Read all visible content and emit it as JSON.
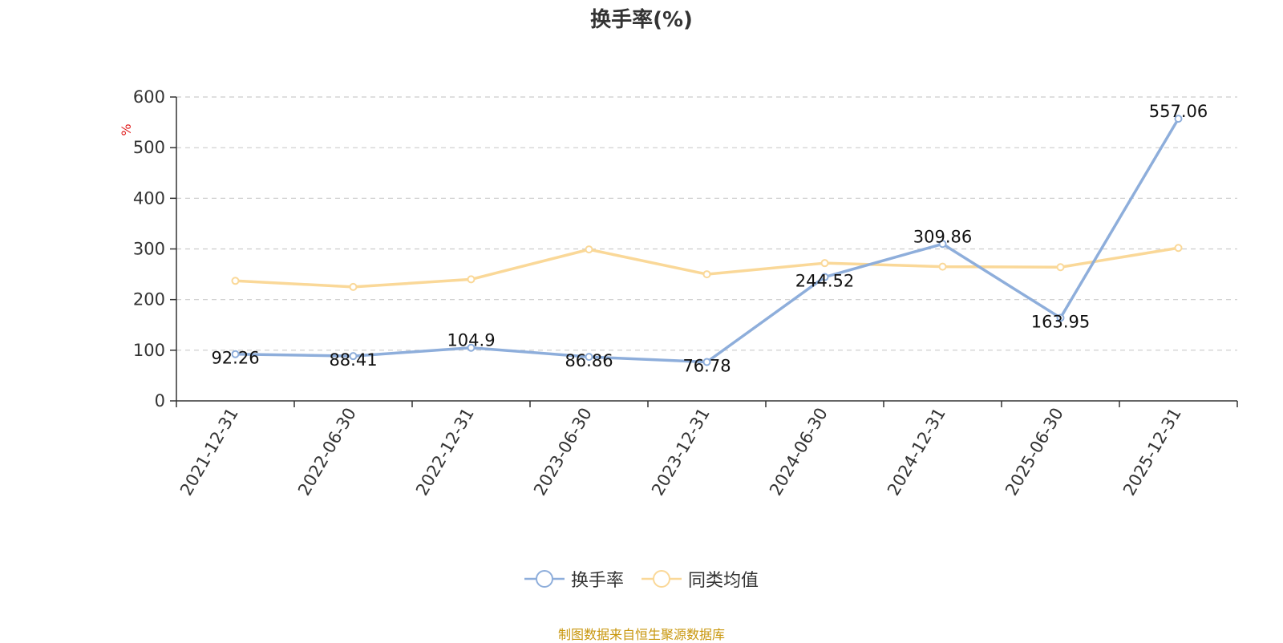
{
  "chart_data": {
    "type": "line",
    "title": "换手率(%)",
    "ylabel": "%",
    "xlabel": "",
    "ylim": [
      0,
      600
    ],
    "yticks": [
      0,
      100,
      200,
      300,
      400,
      500,
      600
    ],
    "grid": true,
    "legend_position": "bottom",
    "categories": [
      "2021-12-31",
      "2022-06-30",
      "2022-12-31",
      "2023-06-30",
      "2023-12-31",
      "2024-06-30",
      "2024-12-31",
      "2025-06-30",
      "2025-12-31"
    ],
    "series": [
      {
        "name": "换手率",
        "color": "#8eaedb",
        "values": [
          92.26,
          88.41,
          104.9,
          86.86,
          76.78,
          244.52,
          309.86,
          163.95,
          557.06
        ],
        "data_labels": [
          "92.26",
          "88.41",
          "104.9",
          "86.86",
          "76.78",
          "244.52",
          "309.86",
          "163.95",
          "557.06"
        ]
      },
      {
        "name": "同类均值",
        "color": "#fad898",
        "values": [
          237,
          225,
          240,
          299,
          250,
          272,
          265,
          264,
          302
        ]
      }
    ]
  },
  "footer": {
    "source": "制图数据来自恒生聚源数据库"
  }
}
